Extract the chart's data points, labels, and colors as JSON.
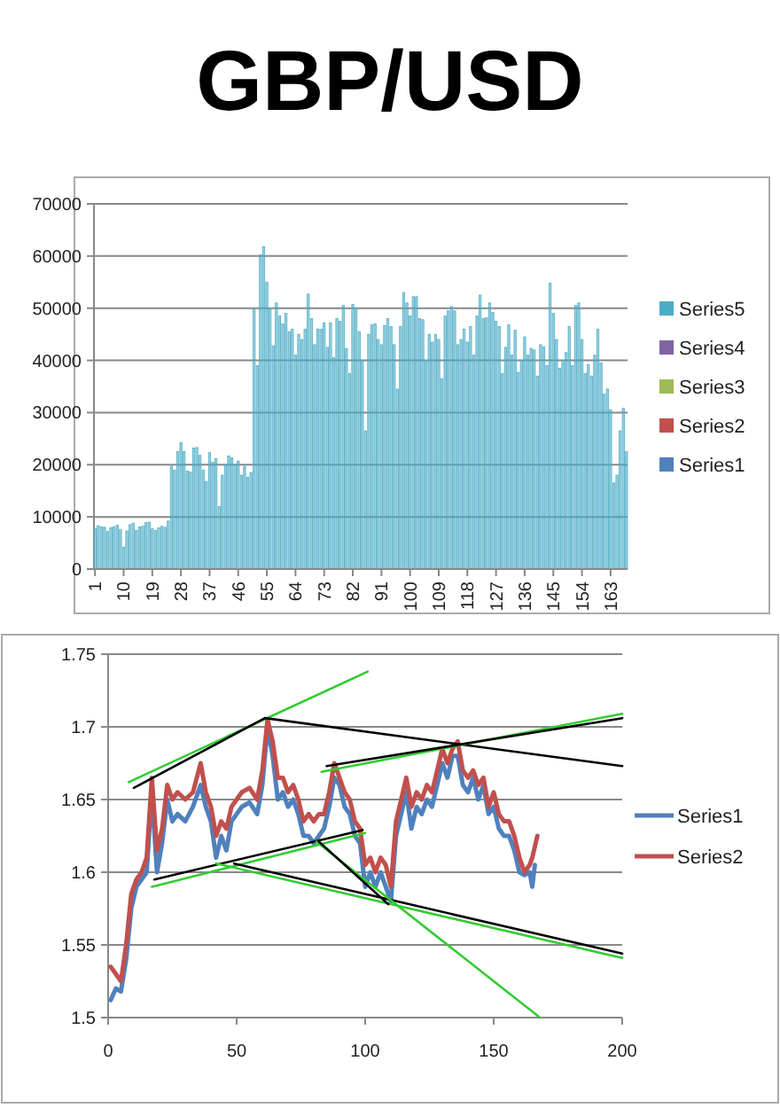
{
  "chart_data": [
    {
      "type": "bar",
      "title": "GBP/USD",
      "stacked": true,
      "legend": "right",
      "grid": "y",
      "ylim": [
        0,
        70000
      ],
      "yticks": [
        0,
        10000,
        20000,
        30000,
        40000,
        50000,
        60000,
        70000
      ],
      "categories": [
        "1",
        null,
        null,
        null,
        null,
        null,
        null,
        null,
        null,
        "10",
        null,
        null,
        null,
        null,
        null,
        null,
        null,
        null,
        "19",
        null,
        null,
        null,
        null,
        null,
        null,
        null,
        null,
        "28",
        null,
        null,
        null,
        null,
        null,
        null,
        null,
        null,
        "37",
        null,
        null,
        null,
        null,
        null,
        null,
        null,
        null,
        "46",
        null,
        null,
        null,
        null,
        null,
        null,
        null,
        null,
        "55",
        null,
        null,
        null,
        null,
        null,
        null,
        null,
        null,
        "64",
        null,
        null,
        null,
        null,
        null,
        null,
        null,
        null,
        "73",
        null,
        null,
        null,
        null,
        null,
        null,
        null,
        null,
        "82",
        null,
        null,
        null,
        null,
        null,
        null,
        null,
        null,
        "91",
        null,
        null,
        null,
        null,
        null,
        null,
        null,
        null,
        "100",
        null,
        null,
        null,
        null,
        null,
        null,
        null,
        null,
        "109",
        null,
        null,
        null,
        null,
        null,
        null,
        null,
        null,
        "118",
        null,
        null,
        null,
        null,
        null,
        null,
        null,
        null,
        "127",
        null,
        null,
        null,
        null,
        null,
        null,
        null,
        null,
        "136",
        null,
        null,
        null,
        null,
        null,
        null,
        null,
        null,
        "145",
        null,
        null,
        null,
        null,
        null,
        null,
        null,
        null,
        "154",
        null,
        null,
        null,
        null,
        null,
        null,
        null,
        null,
        "163",
        null,
        null,
        null,
        null,
        null
      ],
      "series": [
        {
          "name": "Series1",
          "color": "#4f81bd",
          "values": [
            null,
            null,
            null,
            null,
            null,
            null,
            null,
            null,
            null,
            null,
            null,
            null,
            null,
            null,
            null,
            null,
            null,
            null,
            null,
            null,
            null,
            null,
            null,
            null,
            null,
            null,
            null,
            null,
            null,
            null,
            null,
            null,
            null,
            null,
            null,
            null,
            null,
            null,
            null,
            null,
            null,
            null,
            null,
            null,
            null,
            null,
            null,
            null,
            null,
            null,
            null,
            null,
            null,
            null,
            null,
            null,
            null,
            null,
            null,
            null,
            null,
            null,
            null,
            null,
            null,
            null,
            null,
            null,
            null,
            null,
            null,
            null,
            null,
            null,
            null,
            null,
            null,
            null,
            null,
            null,
            null,
            null,
            null,
            null,
            null,
            null,
            null,
            null,
            null,
            null,
            null,
            null,
            null,
            null,
            null,
            null,
            null,
            null,
            null,
            null,
            null,
            null,
            null,
            null,
            null,
            null,
            null,
            null,
            null,
            null,
            null,
            null,
            null,
            null,
            null,
            null,
            null,
            null,
            null,
            null,
            null,
            null,
            null,
            null,
            null,
            null,
            null,
            null,
            null,
            null,
            null,
            null,
            null,
            null,
            null,
            null,
            null,
            null,
            null,
            null,
            null,
            null,
            null,
            null,
            null,
            null,
            null,
            null,
            null,
            null,
            null,
            null,
            null,
            null,
            null,
            null,
            null,
            null,
            null,
            null,
            null,
            null,
            null,
            null,
            null,
            null,
            null,
            null
          ]
        },
        {
          "name": "Series2",
          "color": "#c0504d",
          "values": [
            null,
            null,
            null,
            null,
            null,
            null,
            null,
            null,
            null,
            null,
            null,
            null,
            null,
            null,
            null,
            null,
            null,
            null,
            null,
            null,
            null,
            null,
            null,
            null,
            null,
            null,
            null,
            null,
            null,
            null,
            null,
            null,
            null,
            null,
            null,
            null,
            null,
            null,
            null,
            null,
            null,
            null,
            null,
            null,
            null,
            null,
            null,
            null,
            null,
            null,
            null,
            null,
            null,
            null,
            null,
            null,
            null,
            null,
            null,
            null,
            null,
            null,
            null,
            null,
            null,
            null,
            null,
            null,
            null,
            null,
            null,
            null,
            null,
            null,
            null,
            null,
            null,
            null,
            null,
            null,
            null,
            null,
            null,
            null,
            null,
            null,
            null,
            null,
            null,
            null,
            null,
            null,
            null,
            null,
            null,
            null,
            null,
            null,
            null,
            null,
            null,
            null,
            null,
            null,
            null,
            null,
            null,
            null,
            null,
            null,
            null,
            null,
            null,
            null,
            null,
            null,
            null,
            null,
            null,
            null,
            null,
            null,
            null,
            null,
            null,
            null,
            null,
            null,
            null,
            null,
            null,
            null,
            null,
            null,
            null,
            null,
            null,
            null,
            null,
            null,
            null,
            null,
            null,
            null,
            null,
            null,
            null,
            null,
            null,
            null,
            null,
            null,
            null,
            null,
            null,
            null,
            null,
            null,
            null,
            null,
            null,
            null,
            null,
            null,
            null,
            null,
            null,
            null
          ]
        },
        {
          "name": "Series3",
          "color": "#9bbb59",
          "values": [
            null,
            null,
            null,
            null,
            null,
            null,
            null,
            null,
            null,
            null,
            null,
            null,
            null,
            null,
            null,
            null,
            null,
            null,
            null,
            null,
            null,
            null,
            null,
            null,
            null,
            null,
            null,
            null,
            null,
            null,
            null,
            null,
            null,
            null,
            null,
            null,
            null,
            null,
            null,
            null,
            null,
            null,
            null,
            null,
            null,
            null,
            null,
            null,
            null,
            null,
            null,
            null,
            null,
            null,
            null,
            null,
            null,
            null,
            null,
            null,
            null,
            null,
            null,
            null,
            null,
            null,
            null,
            null,
            null,
            null,
            null,
            null,
            null,
            null,
            null,
            null,
            null,
            null,
            null,
            null,
            null,
            null,
            null,
            null,
            null,
            null,
            null,
            null,
            null,
            null,
            null,
            null,
            null,
            null,
            null,
            null,
            null,
            null,
            null,
            null,
            null,
            null,
            null,
            null,
            null,
            null,
            null,
            null,
            null,
            null,
            null,
            null,
            null,
            null,
            null,
            null,
            null,
            null,
            null,
            null,
            null,
            null,
            null,
            null,
            null,
            null,
            null,
            null,
            null,
            null,
            null,
            null,
            null,
            null,
            null,
            null,
            null,
            null,
            null,
            null,
            null,
            null,
            null,
            null,
            null,
            null,
            null,
            null,
            null,
            null,
            null,
            null,
            null,
            null,
            null,
            null,
            null,
            null,
            null,
            null,
            null,
            null,
            null,
            null,
            null,
            null,
            null,
            null
          ]
        },
        {
          "name": "Series4",
          "color": "#8064a2",
          "values": [
            null,
            null,
            null,
            null,
            null,
            null,
            null,
            null,
            null,
            null,
            null,
            null,
            null,
            null,
            null,
            null,
            null,
            null,
            null,
            null,
            null,
            null,
            null,
            null,
            null,
            null,
            null,
            null,
            null,
            null,
            null,
            null,
            null,
            null,
            null,
            null,
            null,
            null,
            null,
            null,
            null,
            null,
            null,
            null,
            null,
            null,
            null,
            null,
            null,
            null,
            null,
            null,
            null,
            null,
            null,
            null,
            null,
            null,
            null,
            null,
            null,
            null,
            null,
            null,
            null,
            null,
            null,
            null,
            null,
            null,
            null,
            null,
            null,
            null,
            null,
            null,
            null,
            null,
            null,
            null,
            null,
            null,
            null,
            null,
            null,
            null,
            null,
            null,
            null,
            null,
            null,
            null,
            null,
            null,
            null,
            null,
            null,
            null,
            null,
            null,
            null,
            null,
            null,
            null,
            null,
            null,
            null,
            null,
            null,
            null,
            null,
            null,
            null,
            null,
            null,
            null,
            null,
            null,
            null,
            null,
            null,
            null,
            null,
            null,
            null,
            null,
            null,
            null,
            null,
            null,
            null,
            null,
            null,
            null,
            null,
            null,
            null,
            null,
            null,
            null,
            null,
            null,
            null,
            null,
            null,
            null,
            null,
            null,
            null,
            null,
            null,
            null,
            null,
            null,
            null,
            null,
            null,
            null,
            null,
            null,
            null,
            null,
            null,
            null,
            null,
            null,
            null,
            null
          ]
        },
        {
          "name": "Series5",
          "color": "#4bacc6",
          "values": [
            7800,
            8300,
            8100,
            8000,
            7200,
            7900,
            8100,
            8400,
            7600,
            4200,
            7300,
            8500,
            8800,
            7400,
            8100,
            8200,
            8900,
            9000,
            7700,
            7400,
            7900,
            8200,
            8000,
            9200,
            20000,
            19000,
            22500,
            24200,
            22500,
            18800,
            18600,
            23200,
            23300,
            21800,
            19000,
            16800,
            22300,
            20500,
            21200,
            12000,
            18000,
            20000,
            21700,
            21300,
            20000,
            20700,
            18000,
            19700,
            17600,
            18500,
            49800,
            39000,
            60200,
            61800,
            55000,
            50000,
            42800,
            51000,
            48500,
            47000,
            49000,
            45500,
            46000,
            41000,
            45000,
            44000,
            46000,
            52700,
            48000,
            43000,
            46000,
            46000,
            47200,
            42500,
            47200,
            40500,
            48000,
            47500,
            50500,
            42300,
            37500,
            50700,
            50000,
            45500,
            40000,
            26500,
            45000,
            46800,
            47000,
            44000,
            43000,
            46700,
            48000,
            46500,
            43000,
            34500,
            46500,
            53000,
            51000,
            48500,
            52200,
            52200,
            48000,
            47800,
            40000,
            45000,
            43500,
            45000,
            44000,
            36500,
            48500,
            49500,
            50300,
            49500,
            43000,
            44000,
            46000,
            43500,
            46500,
            41000,
            48500,
            52500,
            48000,
            48200,
            51000,
            49200,
            47500,
            46500,
            37500,
            42500,
            46800,
            41000,
            45800,
            37700,
            40000,
            44500,
            41000,
            42300,
            42000,
            37000,
            43000,
            42600,
            39000,
            54800,
            49000,
            44000,
            38500,
            40000,
            41500,
            46500,
            39000,
            50500,
            51000,
            44000,
            37500,
            39200,
            37000,
            41000,
            46000,
            39500,
            33500,
            34500,
            30500,
            16500,
            18000,
            26500,
            30800,
            22500
          ]
        }
      ]
    },
    {
      "type": "line",
      "legend": "right",
      "grid": "y",
      "xlim": [
        0,
        200
      ],
      "xticks": [
        0,
        50,
        100,
        150,
        200
      ],
      "ylim": [
        1.5,
        1.75
      ],
      "yticks": [
        1.5,
        1.55,
        1.6,
        1.65,
        1.7,
        1.75
      ],
      "series": [
        {
          "name": "Series1",
          "color": "#4f81bd",
          "x": [
            1,
            3,
            5,
            7,
            9,
            11,
            13,
            15,
            17,
            19,
            21,
            23,
            25,
            27,
            30,
            33,
            36,
            38,
            40,
            42,
            44,
            46,
            48,
            50,
            52,
            55,
            58,
            60,
            62,
            64,
            66,
            68,
            70,
            72,
            74,
            76,
            78,
            80,
            82,
            84,
            86,
            88,
            90,
            92,
            94,
            96,
            98,
            100,
            102,
            104,
            106,
            108,
            110,
            112,
            114,
            116,
            118,
            120,
            122,
            124,
            126,
            128,
            130,
            132,
            134,
            136,
            138,
            140,
            142,
            144,
            146,
            148,
            150,
            152,
            154,
            156,
            158,
            160,
            162,
            164,
            165,
            166
          ],
          "values": [
            1.512,
            1.52,
            1.518,
            1.54,
            1.575,
            1.59,
            1.595,
            1.6,
            1.655,
            1.6,
            1.62,
            1.65,
            1.635,
            1.64,
            1.635,
            1.645,
            1.66,
            1.645,
            1.635,
            1.61,
            1.625,
            1.615,
            1.635,
            1.64,
            1.645,
            1.648,
            1.64,
            1.66,
            1.7,
            1.68,
            1.65,
            1.655,
            1.645,
            1.65,
            1.64,
            1.625,
            1.625,
            1.62,
            1.625,
            1.63,
            1.645,
            1.665,
            1.66,
            1.645,
            1.64,
            1.625,
            1.62,
            1.59,
            1.6,
            1.59,
            1.6,
            1.59,
            1.58,
            1.625,
            1.64,
            1.655,
            1.63,
            1.645,
            1.64,
            1.65,
            1.645,
            1.66,
            1.675,
            1.665,
            1.68,
            1.68,
            1.66,
            1.655,
            1.665,
            1.65,
            1.66,
            1.64,
            1.645,
            1.63,
            1.625,
            1.625,
            1.615,
            1.6,
            1.598,
            1.6,
            1.59,
            1.605
          ]
        },
        {
          "name": "Series2",
          "color": "#c0504d",
          "x": [
            1,
            3,
            5,
            7,
            9,
            11,
            13,
            15,
            17,
            19,
            21,
            23,
            25,
            27,
            30,
            33,
            36,
            38,
            40,
            42,
            44,
            46,
            48,
            50,
            52,
            55,
            58,
            60,
            62,
            64,
            66,
            68,
            70,
            72,
            74,
            76,
            78,
            80,
            82,
            84,
            86,
            88,
            90,
            92,
            94,
            96,
            98,
            100,
            102,
            104,
            106,
            108,
            110,
            112,
            114,
            116,
            118,
            120,
            122,
            124,
            126,
            128,
            130,
            132,
            134,
            136,
            138,
            140,
            142,
            144,
            146,
            148,
            150,
            152,
            154,
            156,
            158,
            160,
            162,
            164,
            165,
            167
          ],
          "values": [
            1.535,
            1.53,
            1.525,
            1.55,
            1.585,
            1.595,
            1.6,
            1.61,
            1.665,
            1.615,
            1.63,
            1.66,
            1.65,
            1.655,
            1.65,
            1.655,
            1.675,
            1.655,
            1.645,
            1.625,
            1.635,
            1.63,
            1.645,
            1.65,
            1.655,
            1.658,
            1.65,
            1.67,
            1.705,
            1.69,
            1.665,
            1.665,
            1.655,
            1.66,
            1.65,
            1.635,
            1.64,
            1.635,
            1.64,
            1.64,
            1.655,
            1.675,
            1.665,
            1.655,
            1.65,
            1.635,
            1.63,
            1.605,
            1.61,
            1.6,
            1.61,
            1.605,
            1.59,
            1.635,
            1.65,
            1.665,
            1.645,
            1.655,
            1.65,
            1.66,
            1.655,
            1.67,
            1.685,
            1.675,
            1.685,
            1.69,
            1.67,
            1.665,
            1.67,
            1.66,
            1.665,
            1.645,
            1.655,
            1.64,
            1.635,
            1.635,
            1.625,
            1.61,
            1.6,
            1.605,
            1.61,
            1.625
          ]
        },
        {
          "color": "#33cc33",
          "x": [
            8,
            101
          ],
          "values": [
            1.662,
            1.738
          ]
        },
        {
          "color": "#000000",
          "x": [
            10,
            61
          ],
          "values": [
            1.658,
            1.706
          ]
        },
        {
          "color": "#000000",
          "x": [
            61,
            200
          ],
          "values": [
            1.706,
            1.673
          ]
        },
        {
          "color": "#33cc33",
          "x": [
            83,
            200
          ],
          "values": [
            1.669,
            1.709
          ]
        },
        {
          "color": "#000000",
          "x": [
            85,
            200
          ],
          "values": [
            1.673,
            1.706
          ]
        },
        {
          "color": "#000000",
          "x": [
            18,
            99
          ],
          "values": [
            1.595,
            1.629
          ]
        },
        {
          "color": "#33cc33",
          "x": [
            17,
            100
          ],
          "values": [
            1.59,
            1.627
          ]
        },
        {
          "color": "#33cc33",
          "x": [
            42,
            200
          ],
          "values": [
            1.606,
            1.541
          ]
        },
        {
          "color": "#000000",
          "x": [
            49,
            200
          ],
          "values": [
            1.606,
            1.544
          ]
        },
        {
          "color": "#33cc33",
          "x": [
            81,
            168
          ],
          "values": [
            1.621,
            1.5
          ]
        },
        {
          "color": "#000000",
          "x": [
            82,
            109
          ],
          "values": [
            1.621,
            1.578
          ]
        }
      ]
    }
  ]
}
